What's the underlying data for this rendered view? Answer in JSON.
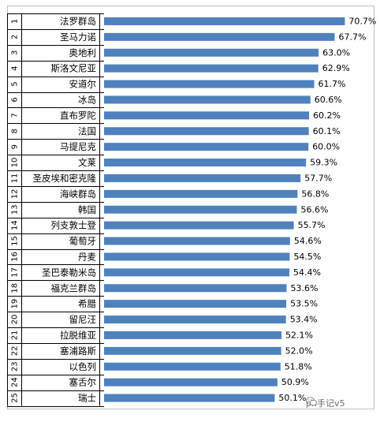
{
  "chart_data": {
    "type": "bar",
    "orientation": "horizontal",
    "ranks": [
      "1",
      "2",
      "3",
      "4",
      "5",
      "6",
      "7",
      "8",
      "9",
      "10",
      "11",
      "12",
      "13",
      "14",
      "15",
      "16",
      "17",
      "18",
      "19",
      "20",
      "21",
      "22",
      "23",
      "24",
      "25"
    ],
    "categories": [
      "法罗群岛",
      "圣马力诺",
      "奥地利",
      "斯洛文尼亚",
      "安道尔",
      "冰岛",
      "直布罗陀",
      "法国",
      "马提尼克",
      "文莱",
      "圣皮埃和密克隆",
      "海峡群岛",
      "韩国",
      "列支敦士登",
      "葡萄牙",
      "丹麦",
      "圣巴泰勒米岛",
      "福克兰群岛",
      "希腊",
      "留尼汪",
      "拉脱维亚",
      "塞浦路斯",
      "以色列",
      "塞舌尔",
      "瑞士"
    ],
    "values": [
      70.7,
      67.7,
      63.0,
      62.9,
      61.7,
      60.6,
      60.2,
      60.1,
      60.0,
      59.3,
      57.7,
      56.8,
      56.6,
      55.7,
      54.6,
      54.5,
      54.4,
      53.6,
      53.5,
      53.4,
      52.1,
      52.0,
      51.8,
      50.9,
      50.1
    ],
    "labels": [
      "70.7%",
      "67.7%",
      "63.0%",
      "62.9%",
      "61.7%",
      "60.6%",
      "60.2%",
      "60.1%",
      "60.0%",
      "59.3%",
      "57.7%",
      "56.8%",
      "56.6%",
      "55.7%",
      "54.6%",
      "54.5%",
      "54.4%",
      "53.6%",
      "53.5%",
      "53.4%",
      "52.1%",
      "52.0%",
      "51.8%",
      "50.9%",
      "50.1%"
    ],
    "bar_color": "#4f81bd",
    "title": "",
    "xlabel": "",
    "ylabel": "",
    "grid": false
  },
  "watermark": {
    "text": "ph手记v5",
    "icon": "wechat-icon"
  }
}
